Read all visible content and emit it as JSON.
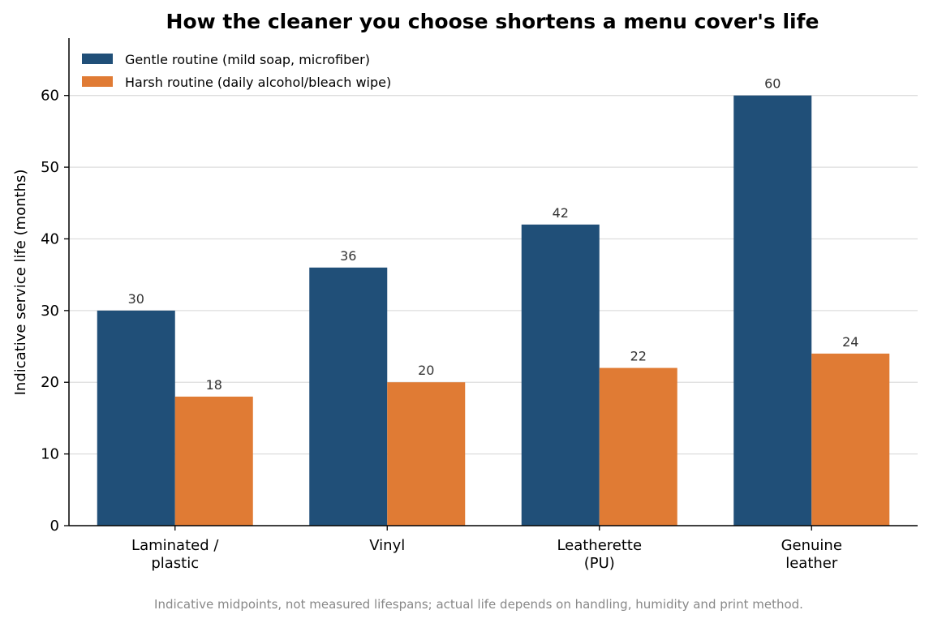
{
  "chart_data": {
    "type": "bar",
    "title": "How the cleaner you choose shortens a menu cover's life",
    "xlabel": "",
    "ylabel": "Indicative service life (months)",
    "ylim": [
      0,
      68
    ],
    "yticks": [
      0,
      10,
      20,
      30,
      40,
      50,
      60
    ],
    "categories": [
      [
        "Laminated /",
        "plastic"
      ],
      [
        "Vinyl"
      ],
      [
        "Leatherette",
        "(PU)"
      ],
      [
        "Genuine",
        "leather"
      ]
    ],
    "series": [
      {
        "name": "Gentle routine (mild soap, microfiber)",
        "values": [
          30,
          36,
          42,
          60
        ],
        "color": "#204f78"
      },
      {
        "name": "Harsh routine (daily alcohol/bleach wipe)",
        "values": [
          18,
          20,
          22,
          24
        ],
        "color": "#e07b34"
      }
    ],
    "grid": "y",
    "legend_position": "top-left",
    "footnote": "Indicative midpoints, not measured lifespans; actual life depends on handling, humidity and print method."
  }
}
